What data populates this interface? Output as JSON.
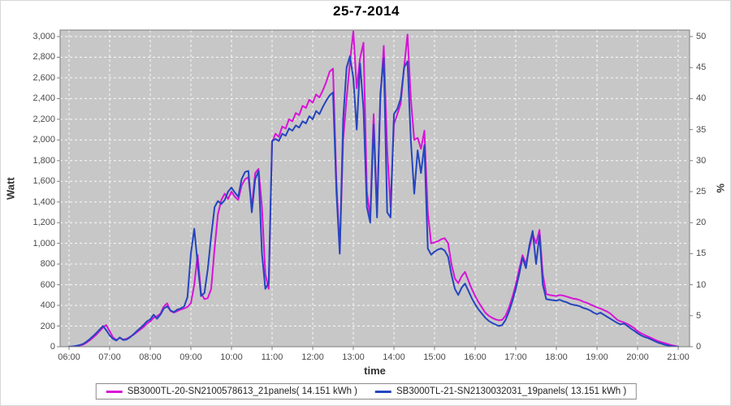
{
  "chart_data": {
    "type": "line",
    "title": "25-7-2014",
    "xlabel": "time",
    "ylabel_left": "Watt",
    "ylabel_right": "%",
    "x_start": "06:00",
    "x_end": "21:00",
    "step_minutes": 5,
    "ylim_left": [
      0,
      3063
    ],
    "ylim_right": [
      0,
      51
    ],
    "grid": "white dashed on grey panel",
    "legend_position": "bottom",
    "colors": {
      "plot_bg": "#c7c7c7",
      "grid": "#ffffff",
      "frame": "#7e7e7e"
    },
    "x_tick_labels": [
      "06:00",
      "07:00",
      "08:00",
      "09:00",
      "10:00",
      "11:00",
      "12:00",
      "13:00",
      "14:00",
      "15:00",
      "16:00",
      "17:00",
      "18:00",
      "19:00",
      "20:00",
      "21:00"
    ],
    "y_tick_labels_left": [
      "0",
      "200",
      "400",
      "600",
      "800",
      "1,000",
      "1,200",
      "1,400",
      "1,600",
      "1,800",
      "2,000",
      "2,200",
      "2,400",
      "2,600",
      "2,800",
      "3,000"
    ],
    "y_tick_values_left": [
      0,
      200,
      400,
      600,
      800,
      1000,
      1200,
      1400,
      1600,
      1800,
      2000,
      2200,
      2400,
      2600,
      2800,
      3000
    ],
    "y_tick_labels_right": [
      "0",
      "5",
      "10",
      "15",
      "20",
      "25",
      "30",
      "35",
      "40",
      "45",
      "50"
    ],
    "y_tick_values_right": [
      0,
      5,
      10,
      15,
      20,
      25,
      30,
      35,
      40,
      45,
      50
    ],
    "watt_per_percent": 60,
    "series": [
      {
        "name": "SB3000TL-20-SN2100578613_21panels( 14.151 kWh )",
        "color": "#d813d8",
        "values": [
          0,
          2,
          5,
          10,
          18,
          35,
          60,
          85,
          115,
          150,
          185,
          210,
          150,
          90,
          65,
          85,
          70,
          75,
          95,
          115,
          140,
          165,
          190,
          225,
          245,
          280,
          295,
          320,
          390,
          420,
          345,
          330,
          345,
          360,
          370,
          385,
          420,
          600,
          890,
          520,
          460,
          470,
          560,
          950,
          1280,
          1420,
          1480,
          1430,
          1500,
          1450,
          1420,
          1560,
          1620,
          1640,
          1350,
          1680,
          1720,
          1350,
          700,
          560,
          1980,
          2060,
          2030,
          2130,
          2110,
          2200,
          2180,
          2260,
          2240,
          2330,
          2310,
          2390,
          2360,
          2440,
          2410,
          2480,
          2560,
          2660,
          2690,
          1600,
          920,
          2000,
          2400,
          2750,
          3050,
          2500,
          2790,
          2940,
          1500,
          1250,
          2250,
          1300,
          2400,
          2910,
          1900,
          1350,
          2150,
          2250,
          2350,
          2700,
          3020,
          2400,
          2000,
          2020,
          1915,
          2090,
          1300,
          1000,
          1010,
          1020,
          1040,
          1050,
          1000,
          800,
          660,
          615,
          680,
          724,
          640,
          560,
          490,
          430,
          380,
          330,
          300,
          280,
          265,
          255,
          260,
          300,
          380,
          480,
          600,
          750,
          885,
          800,
          950,
          1090,
          1000,
          1130,
          700,
          510,
          500,
          495,
          490,
          500,
          495,
          485,
          475,
          465,
          460,
          450,
          435,
          425,
          410,
          395,
          380,
          370,
          355,
          340,
          320,
          290,
          260,
          245,
          235,
          220,
          200,
          180,
          150,
          130,
          115,
          100,
          85,
          70,
          55,
          45,
          35,
          25,
          15,
          8,
          0
        ]
      },
      {
        "name": "SB3000TL-21-SN2130032031_19panels( 13.151 kWh )",
        "color": "#2545be",
        "values": [
          0,
          3,
          8,
          15,
          25,
          45,
          70,
          100,
          130,
          165,
          200,
          160,
          110,
          75,
          60,
          90,
          65,
          70,
          90,
          120,
          150,
          180,
          210,
          245,
          265,
          310,
          270,
          310,
          370,
          390,
          350,
          335,
          360,
          370,
          390,
          480,
          900,
          1140,
          800,
          490,
          520,
          750,
          1070,
          1350,
          1410,
          1380,
          1420,
          1500,
          1540,
          1490,
          1450,
          1620,
          1690,
          1700,
          1300,
          1620,
          1700,
          900,
          560,
          620,
          1990,
          2010,
          1990,
          2060,
          2040,
          2110,
          2090,
          2140,
          2120,
          2180,
          2160,
          2230,
          2200,
          2280,
          2250,
          2320,
          2380,
          2430,
          2460,
          1500,
          900,
          2200,
          2700,
          2810,
          2600,
          2100,
          2740,
          2300,
          1350,
          1200,
          2150,
          1250,
          2450,
          2790,
          1300,
          1250,
          2250,
          2300,
          2400,
          2700,
          2760,
          2000,
          1480,
          1900,
          1680,
          1950,
          950,
          890,
          920,
          940,
          950,
          930,
          870,
          700,
          560,
          500,
          570,
          610,
          540,
          470,
          410,
          360,
          320,
          280,
          250,
          230,
          215,
          200,
          210,
          260,
          340,
          440,
          560,
          700,
          860,
          760,
          980,
          1120,
          800,
          1080,
          600,
          460,
          455,
          450,
          445,
          455,
          440,
          430,
          415,
          405,
          400,
          390,
          375,
          365,
          350,
          330,
          315,
          330,
          310,
          290,
          270,
          250,
          230,
          215,
          225,
          200,
          175,
          155,
          130,
          110,
          95,
          85,
          70,
          55,
          40,
          30,
          20,
          12,
          5,
          2,
          0
        ]
      }
    ]
  },
  "legend": {
    "item1": "SB3000TL-20-SN2100578613_21panels( 14.151 kWh )",
    "item2": "SB3000TL-21-SN2130032031_19panels( 13.151 kWh )"
  }
}
